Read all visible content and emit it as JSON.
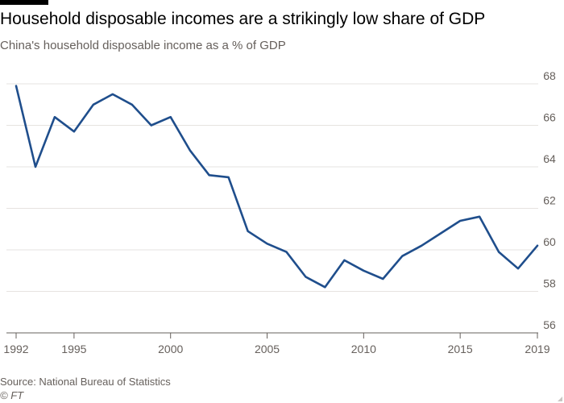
{
  "header": {
    "title": "Household disposable incomes are a strikingly low share of GDP",
    "subtitle": "China's household disposable income as a % of GDP"
  },
  "footer": {
    "source": "Source: National Bureau of Statistics",
    "credit": "© FT"
  },
  "colors": {
    "line": "#1f4e8c",
    "grid": "#e6e3e0",
    "axis": "#66605c"
  },
  "chart_data": {
    "type": "line",
    "title": "Household disposable incomes are a strikingly low share of GDP",
    "subtitle": "China's household disposable income as a % of GDP",
    "xlabel": "",
    "ylabel": "",
    "xlim": [
      1992,
      2019
    ],
    "ylim": [
      56,
      68
    ],
    "x_ticks": [
      "1992",
      "1995",
      "2000",
      "2005",
      "2010",
      "2015",
      "2019"
    ],
    "y_ticks": [
      "56",
      "58",
      "60",
      "62",
      "64",
      "66",
      "68"
    ],
    "y_axis_position": "right",
    "grid": true,
    "series": [
      {
        "name": "Household disposable income (% of GDP)",
        "x": [
          1992,
          1993,
          1994,
          1995,
          1996,
          1997,
          1998,
          1999,
          2000,
          2001,
          2002,
          2003,
          2004,
          2005,
          2006,
          2007,
          2008,
          2009,
          2010,
          2011,
          2012,
          2013,
          2014,
          2015,
          2016,
          2017,
          2018,
          2019
        ],
        "values": [
          67.9,
          64.0,
          66.4,
          65.7,
          67.0,
          67.5,
          67.0,
          66.0,
          66.4,
          64.8,
          63.6,
          63.5,
          60.9,
          60.3,
          59.9,
          58.7,
          58.2,
          59.5,
          59.0,
          58.6,
          59.7,
          60.2,
          60.8,
          61.4,
          61.6,
          59.9,
          59.1,
          60.2
        ]
      }
    ]
  }
}
